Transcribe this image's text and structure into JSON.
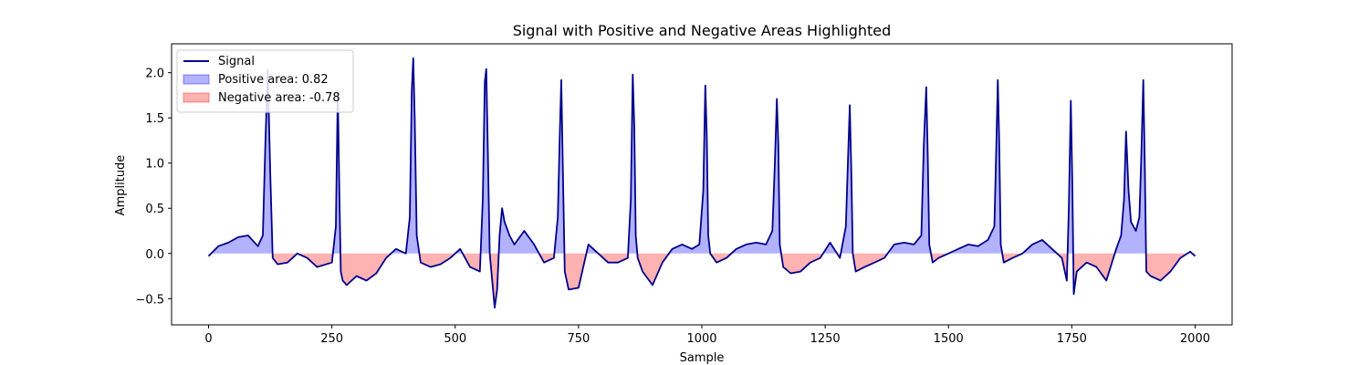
{
  "chart_data": {
    "type": "line",
    "title": "Signal with Positive and Negative Areas Highlighted",
    "xlabel": "Sample",
    "ylabel": "Amplitude",
    "xlim": [
      -75,
      2075
    ],
    "ylim": [
      -0.79,
      2.32
    ],
    "xticks": [
      0,
      250,
      500,
      750,
      1000,
      1250,
      1500,
      1750,
      2000
    ],
    "xtick_labels": [
      "0",
      "250",
      "500",
      "750",
      "1000",
      "1250",
      "1500",
      "1750",
      "2000"
    ],
    "yticks": [
      -0.5,
      0.0,
      0.5,
      1.0,
      1.5,
      2.0
    ],
    "ytick_labels": [
      "−0.5",
      "0.0",
      "0.5",
      "1.0",
      "1.5",
      "2.0"
    ],
    "grid": false,
    "legend_position": "top-left",
    "colors": {
      "signal": "#00008b",
      "positive_fill": "#0000ff",
      "negative_fill": "#ff0000",
      "fill_opacity": 0.3
    },
    "series": [
      {
        "name": "Signal",
        "x": [
          0,
          20,
          40,
          60,
          80,
          100,
          110,
          115,
          120,
          125,
          130,
          140,
          160,
          180,
          200,
          220,
          250,
          258,
          262,
          265,
          268,
          272,
          280,
          300,
          320,
          340,
          360,
          380,
          400,
          408,
          412,
          415,
          418,
          422,
          430,
          450,
          470,
          490,
          510,
          530,
          550,
          556,
          560,
          563,
          566,
          570,
          575,
          580,
          585,
          590,
          595,
          600,
          610,
          620,
          640,
          660,
          680,
          700,
          708,
          712,
          715,
          718,
          722,
          730,
          750,
          770,
          790,
          810,
          830,
          850,
          856,
          860,
          863,
          866,
          870,
          880,
          900,
          920,
          940,
          960,
          980,
          995,
          1003,
          1007,
          1010,
          1013,
          1017,
          1030,
          1050,
          1070,
          1090,
          1110,
          1130,
          1143,
          1148,
          1152,
          1155,
          1158,
          1165,
          1180,
          1200,
          1220,
          1240,
          1260,
          1280,
          1292,
          1296,
          1300,
          1303,
          1306,
          1312,
          1330,
          1350,
          1370,
          1390,
          1410,
          1430,
          1445,
          1450,
          1455,
          1458,
          1461,
          1468,
          1480,
          1500,
          1520,
          1540,
          1560,
          1580,
          1593,
          1597,
          1600,
          1603,
          1606,
          1612,
          1630,
          1650,
          1670,
          1690,
          1710,
          1730,
          1740,
          1744,
          1748,
          1751,
          1754,
          1760,
          1780,
          1800,
          1820,
          1840,
          1850,
          1856,
          1860,
          1865,
          1870,
          1880,
          1887,
          1891,
          1895,
          1898,
          1901,
          1910,
          1930,
          1950,
          1970,
          1990,
          2000
        ],
        "values": [
          -0.03,
          0.08,
          0.12,
          0.18,
          0.2,
          0.08,
          0.2,
          1.2,
          2.03,
          0.9,
          -0.05,
          -0.12,
          -0.1,
          0.0,
          -0.05,
          -0.15,
          -0.1,
          0.3,
          1.8,
          0.7,
          -0.2,
          -0.3,
          -0.35,
          -0.25,
          -0.3,
          -0.22,
          -0.05,
          0.05,
          0.0,
          0.4,
          1.8,
          2.16,
          1.5,
          0.2,
          -0.1,
          -0.15,
          -0.12,
          -0.05,
          0.05,
          -0.15,
          -0.2,
          0.6,
          1.9,
          2.04,
          1.2,
          0.0,
          -0.3,
          -0.6,
          -0.4,
          0.2,
          0.5,
          0.35,
          0.2,
          0.1,
          0.25,
          0.1,
          -0.1,
          -0.05,
          0.4,
          1.3,
          1.92,
          1.0,
          -0.2,
          -0.4,
          -0.38,
          0.1,
          0.0,
          -0.1,
          -0.1,
          -0.05,
          0.6,
          1.98,
          1.4,
          0.2,
          -0.05,
          -0.2,
          -0.35,
          -0.1,
          0.05,
          0.1,
          0.05,
          0.1,
          0.7,
          1.86,
          1.3,
          0.2,
          0.0,
          -0.1,
          -0.05,
          0.05,
          0.1,
          0.12,
          0.1,
          0.25,
          1.0,
          1.71,
          1.2,
          0.1,
          -0.15,
          -0.22,
          -0.2,
          -0.1,
          -0.05,
          0.12,
          -0.05,
          0.3,
          1.0,
          1.64,
          0.9,
          0.0,
          -0.2,
          -0.15,
          -0.1,
          -0.05,
          0.1,
          0.12,
          0.1,
          0.2,
          1.2,
          1.84,
          1.1,
          0.1,
          -0.1,
          -0.05,
          0.0,
          0.05,
          0.1,
          0.08,
          0.15,
          0.3,
          1.2,
          1.92,
          1.2,
          0.1,
          -0.1,
          -0.05,
          0.0,
          0.1,
          0.15,
          0.05,
          -0.05,
          -0.3,
          0.5,
          1.69,
          0.8,
          -0.45,
          -0.2,
          -0.1,
          -0.15,
          -0.3,
          0.05,
          0.2,
          0.6,
          1.35,
          0.7,
          0.35,
          0.25,
          0.4,
          1.1,
          1.92,
          1.0,
          -0.2,
          -0.25,
          -0.3,
          -0.2,
          -0.05,
          0.02,
          -0.03
        ]
      }
    ],
    "legend": [
      {
        "kind": "line",
        "label": "Signal"
      },
      {
        "kind": "positive",
        "label": "Positive area: 0.82"
      },
      {
        "kind": "negative",
        "label": "Negative area: -0.78"
      }
    ]
  }
}
